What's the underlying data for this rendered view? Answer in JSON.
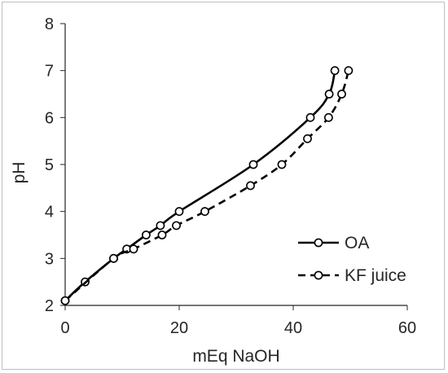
{
  "chart_data": {
    "type": "line",
    "title": "",
    "xlabel": "mEq NaOH",
    "ylabel": "pH",
    "xlim": [
      0,
      60
    ],
    "ylim": [
      2,
      8
    ],
    "x_ticks": [
      "0",
      "20",
      "40",
      "60"
    ],
    "y_ticks": [
      "2",
      "3",
      "4",
      "5",
      "6",
      "7",
      "8"
    ],
    "grid": false,
    "legend_position": "bottom-right",
    "series": [
      {
        "name": "OA",
        "line_style": "solid",
        "marker": "open-circle",
        "x": [
          0,
          3.5,
          8.5,
          10.8,
          14.2,
          16.7,
          20,
          33,
          43,
          46.3,
          47.3
        ],
        "y": [
          2.1,
          2.5,
          3.0,
          3.2,
          3.5,
          3.7,
          4.0,
          5.0,
          6.0,
          6.5,
          7.0
        ]
      },
      {
        "name": "KF juice",
        "line_style": "dashed",
        "marker": "open-circle",
        "x": [
          0,
          8.5,
          12,
          17,
          19.5,
          24.5,
          32.5,
          38,
          42.5,
          46.2,
          48.5,
          49.7
        ],
        "y": [
          2.1,
          3.0,
          3.2,
          3.5,
          3.7,
          4.0,
          4.55,
          5.0,
          5.55,
          6.0,
          6.5,
          7.0
        ]
      }
    ],
    "colors": {
      "line": "#000000",
      "marker_fill": "#ffffff",
      "axis": "#262626",
      "frame": "#bfbfbf"
    }
  }
}
